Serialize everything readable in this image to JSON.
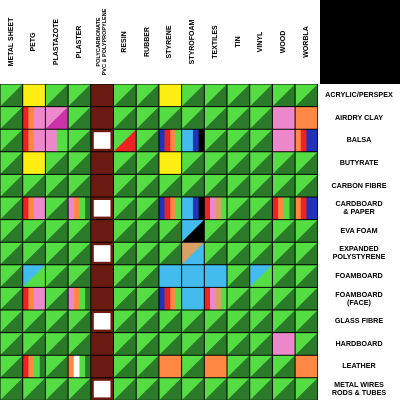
{
  "columns": [
    {
      "label": "METAL SHEET"
    },
    {
      "label": "PETG"
    },
    {
      "label": "PLASTAZOTE"
    },
    {
      "label": "PLASTER"
    },
    {
      "label": "POLYCARBONATE\nPVC & POLYPROPYLENE",
      "small": true
    },
    {
      "label": "RESIN"
    },
    {
      "label": "RUBBER"
    },
    {
      "label": "STYRENE"
    },
    {
      "label": "STYROFOAM"
    },
    {
      "label": "TEXTILES"
    },
    {
      "label": "TIN"
    },
    {
      "label": "VINYL"
    },
    {
      "label": "WOOD"
    },
    {
      "label": "WORBLA"
    }
  ],
  "rows": [
    {
      "label": "ACRYLIC/PERSPEX"
    },
    {
      "label": "AIRDRY CLAY"
    },
    {
      "label": "BALSA"
    },
    {
      "label": "BUTYRATE"
    },
    {
      "label": "CARBON FIBRE"
    },
    {
      "label": "CARDBOARD\n& PAPER"
    },
    {
      "label": "EVA FOAM"
    },
    {
      "label": "EXPANDED\nPOLYSTYRENE"
    },
    {
      "label": "FOAMBOARD"
    },
    {
      "label": "FOAMBOARD\n(FACE)"
    },
    {
      "label": "GLASS FIBRE"
    },
    {
      "label": "HARDBOARD"
    },
    {
      "label": "LEATHER"
    },
    {
      "label": "METAL WIRES\nRODS & TUBES"
    }
  ],
  "colors": {
    "light_green": "#55dd44",
    "dark_green": "#2a7a2a",
    "yellow": "#ffee11",
    "pink": "#ee88cc",
    "red": "#ee2222",
    "orange": "#ff8844",
    "maroon": "#6b1a12",
    "white": "#ffffff",
    "cyan": "#44bbee",
    "blue": "#2233bb",
    "magenta": "#cc33aa",
    "tan": "#d9a066",
    "black": "#000000"
  },
  "cells": [
    [
      "LD",
      "Y",
      "LD",
      "LD",
      "M",
      "LD",
      "LD",
      "Y",
      "LD",
      "LD",
      "LD",
      "LD",
      "LD",
      "LD"
    ],
    [
      "LD",
      "RO|P",
      "PM",
      "LD",
      "M",
      "LD",
      "LD",
      "LD",
      "LD",
      "LD",
      "LD",
      "LD",
      "P",
      "O"
    ],
    [
      "LD",
      "RO|P",
      "PL",
      "LD",
      "W",
      "R",
      "LD",
      "BR",
      "C|B",
      "LD",
      "LD",
      "LD",
      "P",
      "RB"
    ],
    [
      "LD",
      "Y",
      "LD",
      "LD",
      "M",
      "LD",
      "LD",
      "Y",
      "LD",
      "LD",
      "LD",
      "LD",
      "LD",
      "LD"
    ],
    [
      "LD",
      "LD",
      "LD",
      "LD",
      "M",
      "LD",
      "LD",
      "LD",
      "LD",
      "LD",
      "LD",
      "LD",
      "LD",
      "LD"
    ],
    [
      "LD",
      "RO|P",
      "LD",
      "PO",
      "W",
      "LD",
      "LD",
      "BR",
      "C|B",
      "RP",
      "LD",
      "LD",
      "RO",
      "RB"
    ],
    [
      "LD",
      "LD",
      "LD",
      "LD",
      "M",
      "LD",
      "LD",
      "LD",
      "CK",
      "LD",
      "LD",
      "LD",
      "LD",
      "LD"
    ],
    [
      "LD",
      "LD",
      "LD",
      "LD",
      "W",
      "LD",
      "LD",
      "LD",
      "CT",
      "LD",
      "LD",
      "LD",
      "LD",
      "LD"
    ],
    [
      "LD",
      "CL",
      "LD",
      "LD",
      "M",
      "LD",
      "LD",
      "C",
      "C",
      "C",
      "LD",
      "CL",
      "LD",
      "LD"
    ],
    [
      "LD",
      "RO|P",
      "LD",
      "PO",
      "M",
      "LD",
      "LD",
      "BR",
      "C",
      "RP",
      "LD",
      "LD",
      "LD",
      "LD"
    ],
    [
      "LD",
      "LD",
      "LD",
      "LD",
      "W",
      "LD",
      "LD",
      "LD",
      "LD",
      "LD",
      "LD",
      "LD",
      "LD",
      "LD"
    ],
    [
      "LD",
      "LD",
      "LD",
      "LD",
      "M",
      "LD",
      "LD",
      "LD",
      "LD",
      "LD",
      "LD",
      "LD",
      "P",
      "LD"
    ],
    [
      "LD",
      "RO",
      "LD",
      "OW",
      "M",
      "LD",
      "LD",
      "O",
      "LD",
      "O",
      "LD",
      "LD",
      "LD",
      "O"
    ],
    [
      "LD",
      "LD",
      "LD",
      "LD",
      "W",
      "LD",
      "LD",
      "LD",
      "LD",
      "LD",
      "LD",
      "LD",
      "LD",
      "LD"
    ]
  ]
}
